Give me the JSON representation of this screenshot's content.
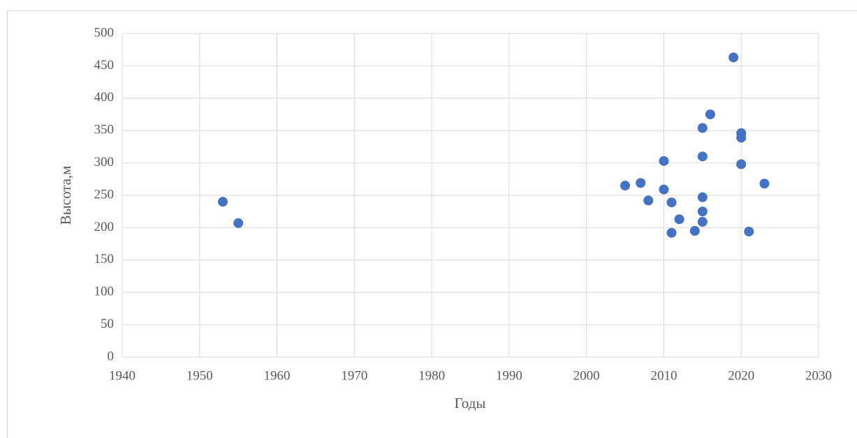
{
  "chart_data": {
    "type": "scatter",
    "x": [
      1953,
      1955,
      2005,
      2007,
      2008,
      2010,
      2010,
      2011,
      2011,
      2012,
      2014,
      2015,
      2015,
      2015,
      2015,
      2015,
      2016,
      2019,
      2020,
      2020,
      2020,
      2021,
      2023
    ],
    "values": [
      240,
      207,
      265,
      269,
      242,
      303,
      259,
      239,
      192,
      213,
      195,
      354,
      310,
      247,
      225,
      209,
      375,
      463,
      346,
      339,
      298,
      194,
      268
    ],
    "color": "#4472c4",
    "xlabel": "Годы",
    "ylabel": "Высота,м",
    "xlim": [
      1940,
      2030
    ],
    "xticks": [
      1940,
      1950,
      1960,
      1970,
      1980,
      1990,
      2000,
      2010,
      2020,
      2030
    ],
    "ylim": [
      0,
      500
    ],
    "yticks": [
      0,
      50,
      100,
      150,
      200,
      250,
      300,
      350,
      400,
      450,
      500
    ],
    "grid": true
  }
}
